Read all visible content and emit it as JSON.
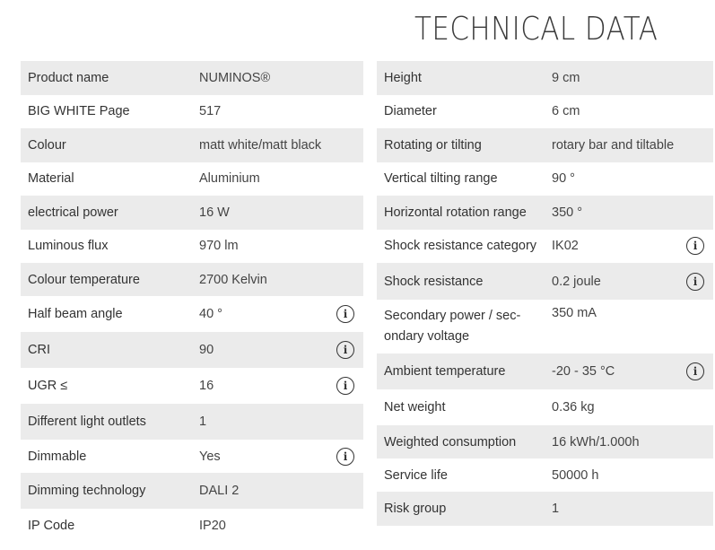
{
  "title": "TECHNICAL DATA",
  "left": [
    {
      "label": "Product name",
      "value": "NUMINOS®"
    },
    {
      "label": "BIG WHITE Page",
      "value": "517"
    },
    {
      "label": "Colour",
      "value": "matt white/matt black"
    },
    {
      "label": "Material",
      "value": "Aluminium"
    },
    {
      "label": "electrical power",
      "value": "16 W"
    },
    {
      "label": "Luminous flux",
      "value": "970 lm"
    },
    {
      "label": "Colour temperature",
      "value": "2700 Kelvin"
    },
    {
      "label": "Half beam angle",
      "value": "40 °",
      "info": true
    },
    {
      "label": "CRI",
      "value": "90",
      "info": true
    },
    {
      "label": "UGR ≤",
      "value": "16",
      "info": true
    },
    {
      "label": "Different light outlets",
      "value": "1"
    },
    {
      "label": "Dimmable",
      "value": "Yes",
      "info": true
    },
    {
      "label": "Dimming technology",
      "value": "DALI 2"
    },
    {
      "label": "IP Code",
      "value": "IP20"
    }
  ],
  "right": [
    {
      "label": "Height",
      "value": "9 cm"
    },
    {
      "label": "Diameter",
      "value": "6 cm"
    },
    {
      "label": "Rotating or tilting",
      "value": "rotary bar and tiltable"
    },
    {
      "label": "Vertical tilting range",
      "value": "90 °"
    },
    {
      "label": "Horizontal rotation range",
      "value": "350 °"
    },
    {
      "label": "Shock resistance category",
      "value": "IK02",
      "info": true
    },
    {
      "label": "Shock resistance",
      "value": "0.2 joule",
      "info": true
    },
    {
      "label": "Secondary power / sec-ondary voltage",
      "value": "350 mA"
    },
    {
      "label": "Ambient temperature",
      "value": "-20 - 35 °C",
      "info": true
    },
    {
      "label": "Net weight",
      "value": "0.36 kg"
    },
    {
      "label": "Weighted consumption",
      "value": "16 kWh/1.000h"
    },
    {
      "label": "Service life",
      "value": "50000 h"
    },
    {
      "label": "Risk group",
      "value": "1"
    }
  ],
  "info_icon": "info-circle-icon",
  "colors": {
    "row_shade": "#ebebeb",
    "text": "#333333"
  }
}
